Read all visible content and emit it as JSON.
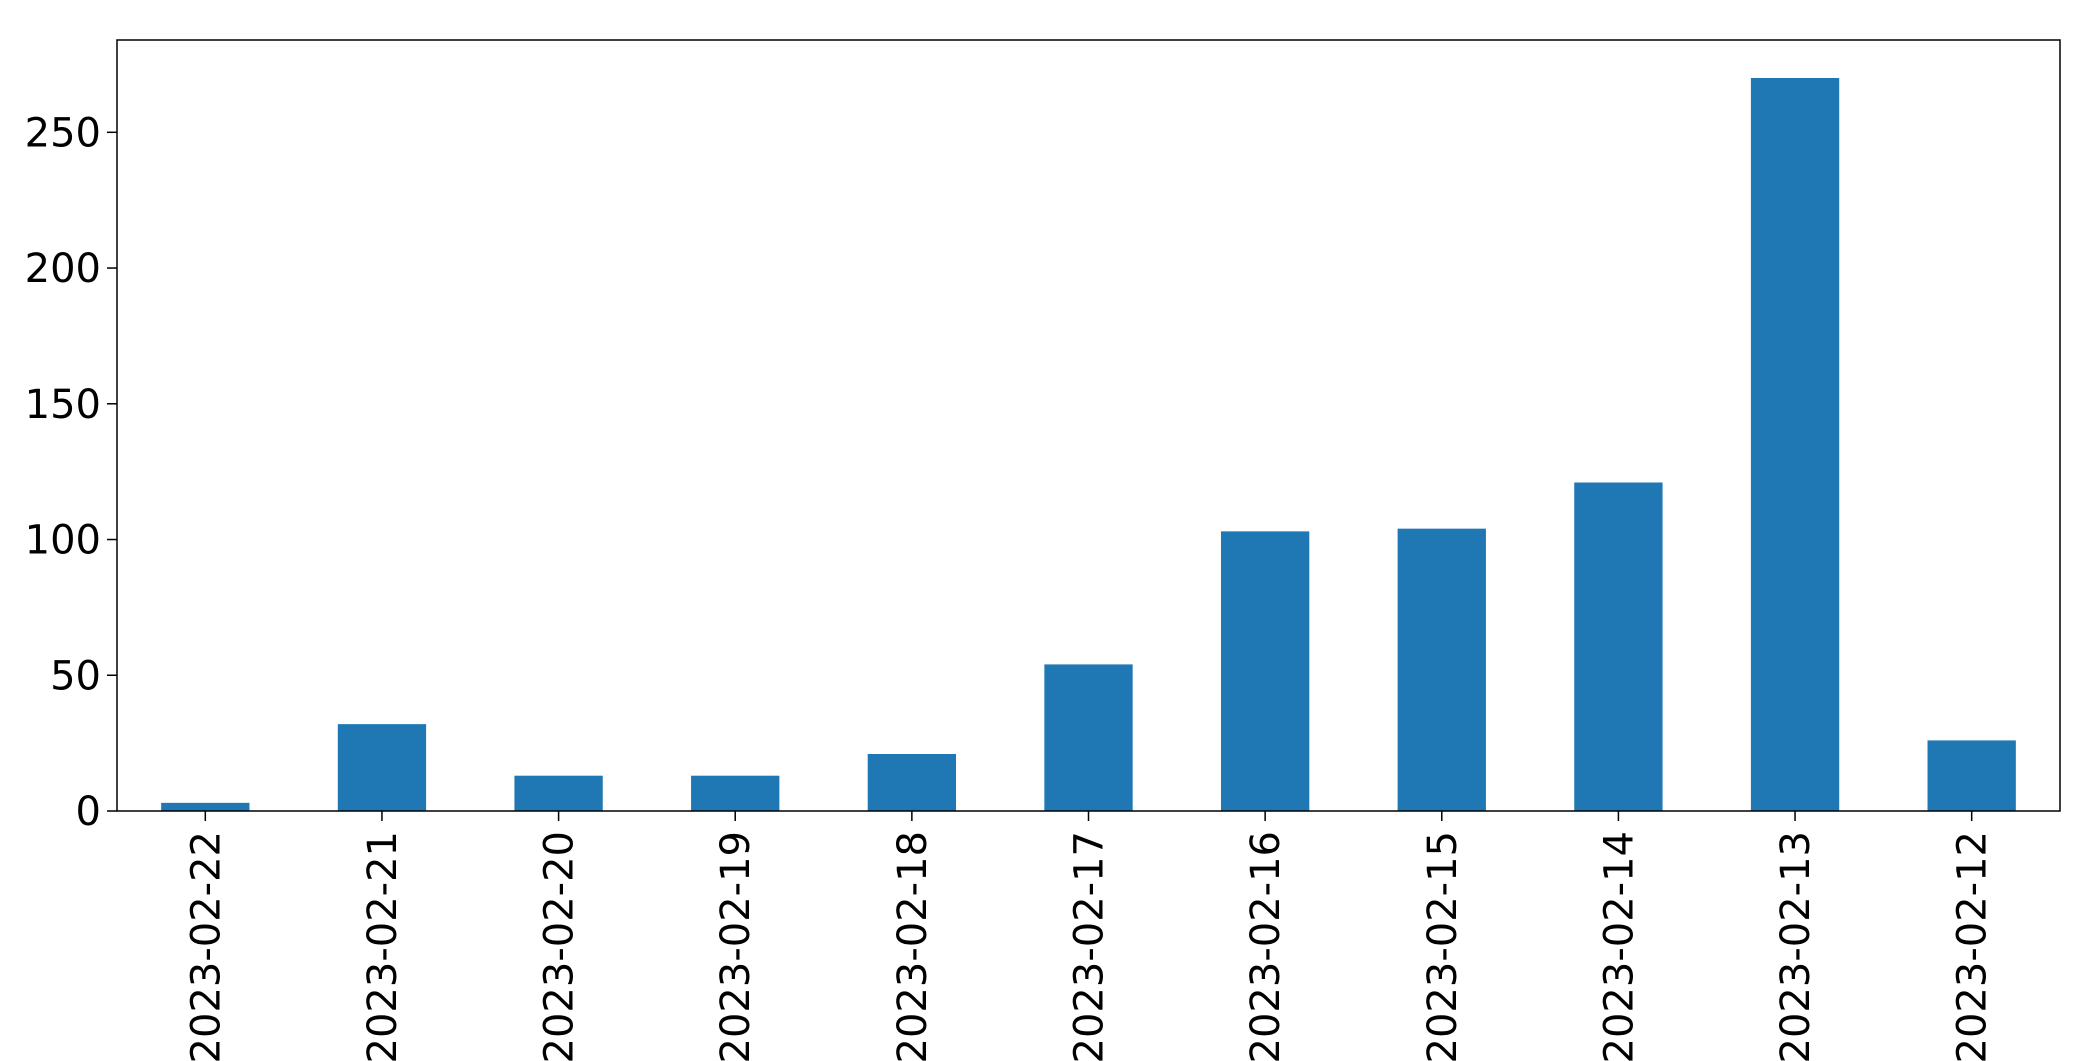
{
  "chart_data": {
    "type": "bar",
    "categories": [
      "2023-02-22",
      "2023-02-21",
      "2023-02-20",
      "2023-02-19",
      "2023-02-18",
      "2023-02-17",
      "2023-02-16",
      "2023-02-15",
      "2023-02-14",
      "2023-02-13",
      "2023-02-12"
    ],
    "values": [
      3,
      32,
      13,
      13,
      21,
      54,
      103,
      104,
      121,
      270,
      26
    ],
    "title": "",
    "xlabel": "",
    "ylabel": "",
    "ylim": [
      0,
      284
    ],
    "yticks": [
      0,
      50,
      100,
      150,
      200,
      250
    ],
    "bar_color": "#1f77b4",
    "grid": false,
    "legend": "none",
    "x_tick_rotation": "vertical"
  }
}
